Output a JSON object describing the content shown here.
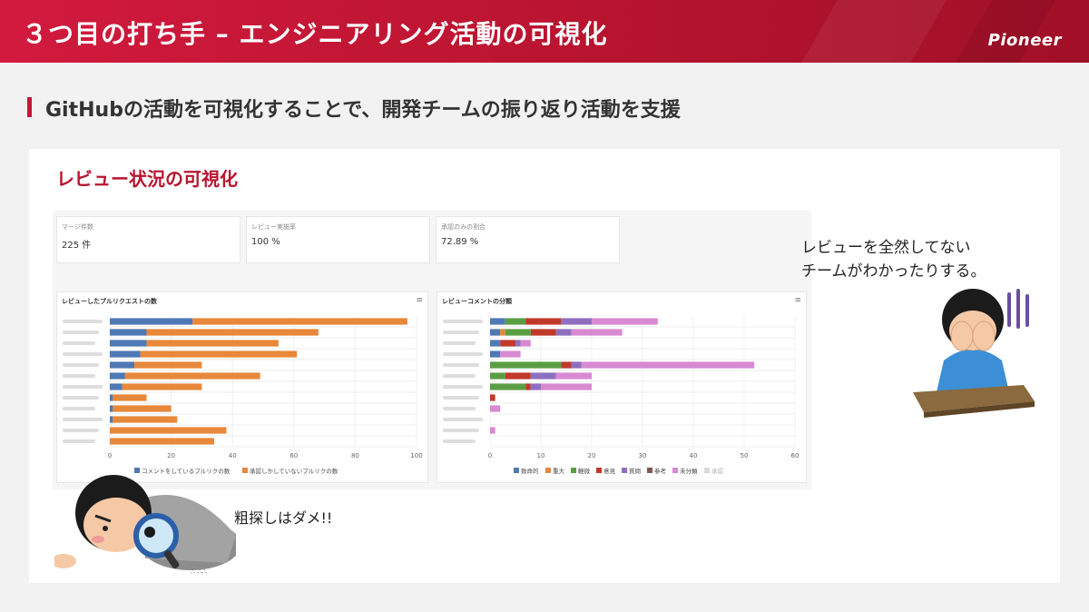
{
  "header": {
    "title": "３つ目の打ち手 – エンジニアリング活動の可視化",
    "logo": "Pioneer",
    "colors": {
      "primary": "#c4173a"
    }
  },
  "subtitle": "GitHubの活動を可視化することで、開発チームの振り返り活動を支援",
  "section_title": "レビュー状況の可視化",
  "cards": [
    {
      "label": "マージ件数",
      "value": "225 件"
    },
    {
      "label": "レビュー実施率",
      "value": "100 %"
    },
    {
      "label": "承認のみの割合",
      "value": "72.89 %"
    }
  ],
  "speech": {
    "line1": "レビューを全然してない",
    "line2": "チームがわかったりする。"
  },
  "caption": "粗探しはダメ!!",
  "chart_data": [
    {
      "type": "bar",
      "title": "レビューしたプルリクエストの数",
      "stacked": true,
      "orientation": "horizontal",
      "xlim": [
        0,
        100
      ],
      "xticks": [
        0,
        20,
        40,
        60,
        80,
        100
      ],
      "legend_position": "bottom",
      "categories": [
        "",
        "",
        "",
        "",
        "",
        "",
        "",
        "",
        "",
        "",
        "",
        ""
      ],
      "series": [
        {
          "name": "コメントをしているプルリクの数",
          "color": "#4e79b5",
          "values": [
            27,
            12,
            12,
            10,
            8,
            5,
            4,
            1,
            1,
            1,
            0,
            0
          ]
        },
        {
          "name": "承認しかしていないプルリクの数",
          "color": "#e8883a",
          "values": [
            70,
            56,
            43,
            51,
            22,
            44,
            26,
            11,
            19,
            21,
            38,
            34
          ]
        }
      ]
    },
    {
      "type": "bar",
      "title": "レビューコメントの分類",
      "stacked": true,
      "orientation": "horizontal",
      "xlim": [
        0,
        60
      ],
      "xticks": [
        0,
        10,
        20,
        30,
        40,
        50,
        60
      ],
      "legend_position": "bottom",
      "categories": [
        "",
        "",
        "",
        "",
        "",
        "",
        "",
        "",
        "",
        "",
        "",
        ""
      ],
      "series": [
        {
          "name": "致命的",
          "color": "#4e79b5",
          "values": [
            3,
            2,
            2,
            2,
            0,
            0,
            0,
            0,
            0,
            0,
            0,
            0
          ]
        },
        {
          "name": "重大",
          "color": "#e8883a",
          "values": [
            0,
            1,
            0,
            0,
            0,
            0,
            0,
            0,
            0,
            0,
            0,
            0
          ]
        },
        {
          "name": "軽微",
          "color": "#5a9e44",
          "values": [
            4,
            5,
            0,
            0,
            14,
            3,
            7,
            0,
            0,
            0,
            0,
            0
          ]
        },
        {
          "name": "意見",
          "color": "#c0392b",
          "values": [
            7,
            5,
            3,
            0,
            2,
            5,
            1,
            1,
            0,
            0,
            0,
            0
          ]
        },
        {
          "name": "質問",
          "color": "#8e6fbf",
          "values": [
            6,
            3,
            1,
            0,
            2,
            5,
            2,
            0,
            0,
            0,
            0,
            0
          ]
        },
        {
          "name": "参考",
          "color": "#7d5a4f",
          "values": [
            0,
            0,
            0,
            0,
            0,
            0,
            0,
            0,
            0,
            0,
            0,
            0
          ]
        },
        {
          "name": "未分類",
          "color": "#d78ad1",
          "values": [
            13,
            10,
            2,
            4,
            34,
            7,
            10,
            0,
            2,
            0,
            1,
            0
          ]
        },
        {
          "name": "承認",
          "color": "#d9d9d9",
          "values": [
            0,
            0,
            0,
            0,
            0,
            0,
            0,
            0,
            0,
            0,
            0,
            0
          ]
        }
      ]
    }
  ]
}
